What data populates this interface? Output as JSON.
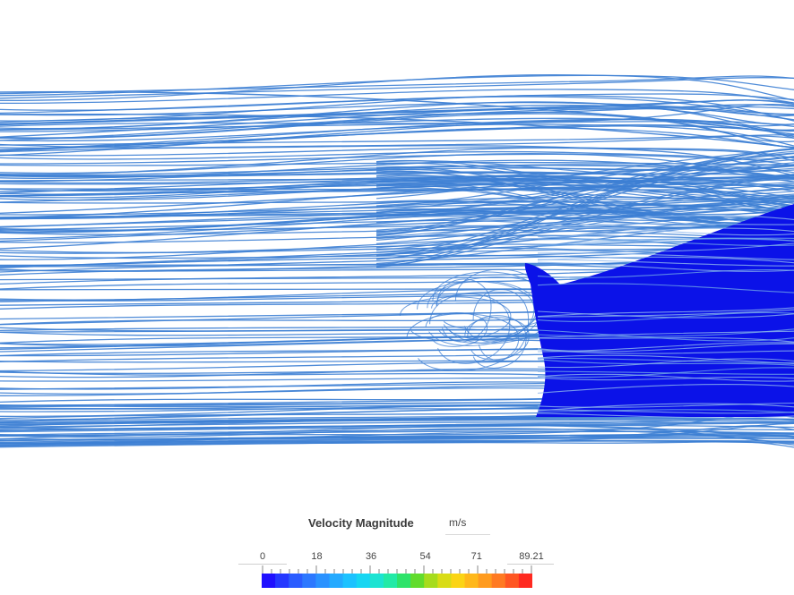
{
  "legend": {
    "title": "Velocity Magnitude",
    "unit": "m/s",
    "min": 0,
    "max": 89.21,
    "tick_labels": [
      "0",
      "18",
      "36",
      "54",
      "71",
      "89.21"
    ],
    "tick_values": [
      0,
      18,
      36,
      54,
      71,
      89.21
    ],
    "color_stops": [
      "#1f10ff",
      "#2438ff",
      "#2a5cff",
      "#2c78ff",
      "#2a92ff",
      "#24aaff",
      "#1cc2ff",
      "#17d6f2",
      "#1ce3d2",
      "#22eaa6",
      "#2ee36a",
      "#61dc2c",
      "#a6dc1c",
      "#d9dc16",
      "#fbd415",
      "#ffb81a",
      "#ff9b1e",
      "#ff7a22",
      "#ff5622",
      "#ff2a20"
    ]
  },
  "scene": {
    "streamline_color": "#3d7fd4",
    "body_color": "#0b12e8"
  }
}
